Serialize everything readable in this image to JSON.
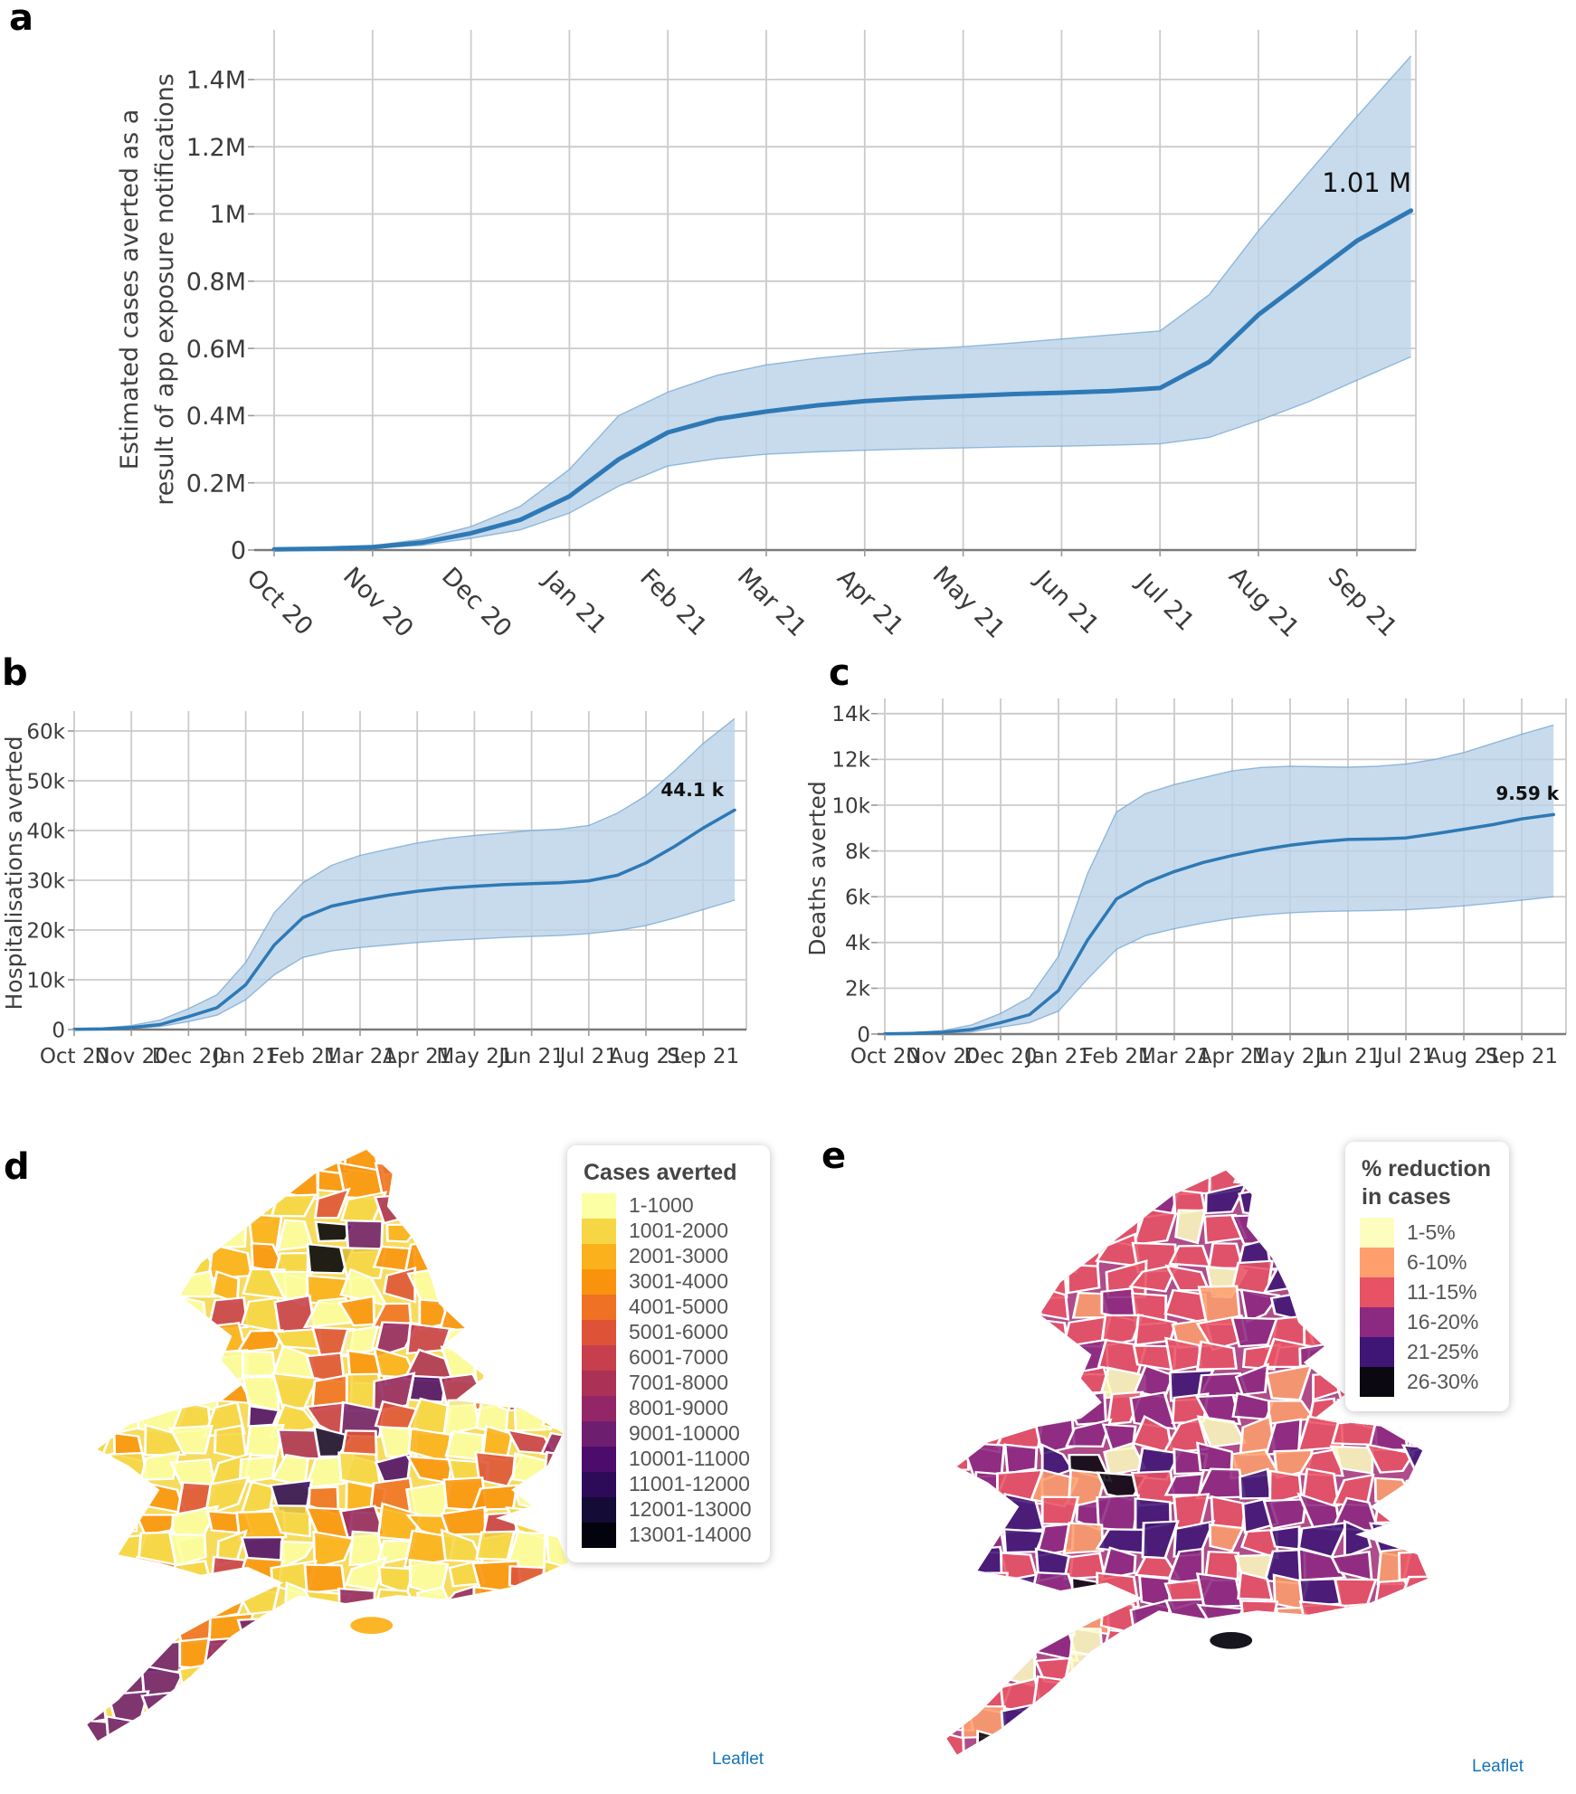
{
  "panels": {
    "a": {
      "letter": "a"
    },
    "b": {
      "letter": "b"
    },
    "c": {
      "letter": "c"
    },
    "d": {
      "letter": "d"
    },
    "e": {
      "letter": "e"
    }
  },
  "months": [
    "Oct 20",
    "Nov 20",
    "Dec 20",
    "Jan 21",
    "Feb 21",
    "Mar 21",
    "Apr 21",
    "May 21",
    "Jun 21",
    "Jul 21",
    "Aug 21",
    "Sep 21"
  ],
  "leaflet_label": "Leaflet",
  "colors": {
    "line": "#2E79B5",
    "band": "#B9D2E8",
    "band_edge": "#6FA3CF",
    "grid": "#CBCBCB",
    "axis": "#7A7A7A",
    "text": "#3B3B3B",
    "annotation": "#111111",
    "leaflet": "#1474B8"
  },
  "chart_data": [
    {
      "id": "a",
      "type": "line",
      "ylabel": "Estimated cases averted as a result of app exposure notifications",
      "ylabel_lines": [
        "Estimated cases averted as a",
        "result of app exposure notifications"
      ],
      "unit": "M",
      "end_label": "1.01 M",
      "end_value_M": 1.01,
      "ylim": [
        0,
        1.55
      ],
      "legend_position": "none",
      "grid": true,
      "yticks": {
        "values": [
          0,
          0.2,
          0.4,
          0.6,
          0.8,
          1.0,
          1.2,
          1.4
        ],
        "labels": [
          "0",
          "0.2M",
          "0.4M",
          "0.6M",
          "0.8M",
          "1M",
          "1.2M",
          "1.4M"
        ]
      },
      "x_tick_labels": [
        "Oct 20",
        "Nov 20",
        "Dec 20",
        "Jan 21",
        "Feb 21",
        "Mar 21",
        "Apr 21",
        "May 21",
        "Jun 21",
        "Jul 21",
        "Aug 21",
        "Sep 21"
      ],
      "series": {
        "x": [
          0,
          0.5,
          1,
          1.5,
          2,
          2.5,
          3,
          3.5,
          4,
          4.5,
          5,
          5.5,
          6,
          6.5,
          7,
          7.5,
          8,
          8.5,
          9,
          9.5,
          10,
          10.5,
          11,
          11.55
        ],
        "mean": [
          0.002,
          0.004,
          0.009,
          0.022,
          0.05,
          0.09,
          0.16,
          0.27,
          0.35,
          0.39,
          0.412,
          0.43,
          0.443,
          0.452,
          0.458,
          0.464,
          0.468,
          0.473,
          0.482,
          0.56,
          0.7,
          0.81,
          0.92,
          1.01
        ],
        "upper": [
          0.003,
          0.006,
          0.013,
          0.032,
          0.07,
          0.13,
          0.24,
          0.4,
          0.47,
          0.52,
          0.551,
          0.57,
          0.585,
          0.596,
          0.605,
          0.616,
          0.628,
          0.64,
          0.652,
          0.76,
          0.95,
          1.12,
          1.29,
          1.47
        ],
        "lower": [
          0.001,
          0.002,
          0.005,
          0.014,
          0.035,
          0.06,
          0.11,
          0.19,
          0.25,
          0.272,
          0.285,
          0.292,
          0.297,
          0.301,
          0.304,
          0.307,
          0.309,
          0.312,
          0.316,
          0.335,
          0.385,
          0.44,
          0.505,
          0.575
        ]
      }
    },
    {
      "id": "b",
      "type": "line",
      "ylabel": "Hospitalisations averted",
      "ylabel_lines": [
        "Hospitalisations averted"
      ],
      "unit": "k",
      "end_label": "44.1 k",
      "end_value_k": 44.1,
      "ylim": [
        0,
        63.6
      ],
      "grid": true,
      "yticks": {
        "values": [
          0,
          10,
          20,
          30,
          40,
          50,
          60
        ],
        "labels": [
          "0",
          "10k",
          "20k",
          "30k",
          "40k",
          "50k",
          "60k"
        ]
      },
      "x_tick_labels": [
        "Oct 20",
        "Nov 20",
        "Dec 20",
        "Jan 21",
        "Feb 21",
        "Mar 21",
        "Apr 21",
        "May 21",
        "Jun 21",
        "Jul 21",
        "Aug 21",
        "Sep 21"
      ],
      "series": {
        "x": [
          0,
          0.5,
          1,
          1.5,
          2,
          2.5,
          3,
          3.5,
          4,
          4.5,
          5,
          5.5,
          6,
          6.5,
          7,
          7.5,
          8,
          8.5,
          9,
          9.5,
          10,
          10.5,
          11,
          11.55
        ],
        "mean": [
          0.05,
          0.15,
          0.4,
          1.0,
          2.6,
          4.4,
          9,
          17,
          22.5,
          24.8,
          26,
          27,
          27.8,
          28.4,
          28.8,
          29.1,
          29.3,
          29.5,
          29.9,
          31,
          33.5,
          36.8,
          40.5,
          44.1
        ],
        "upper": [
          0.1,
          0.3,
          0.8,
          1.9,
          4.2,
          7,
          13.5,
          23.5,
          29.5,
          33,
          35,
          36.3,
          37.5,
          38.4,
          39,
          39.5,
          40,
          40.3,
          41,
          43.5,
          47,
          52,
          57.5,
          62.5
        ],
        "lower": [
          0.02,
          0.08,
          0.2,
          0.6,
          1.6,
          2.9,
          6,
          11,
          14.5,
          15.8,
          16.5,
          17,
          17.5,
          17.9,
          18.2,
          18.5,
          18.7,
          18.9,
          19.3,
          19.9,
          20.9,
          22.4,
          24.1,
          26
        ]
      }
    },
    {
      "id": "c",
      "type": "line",
      "ylabel": "Deaths averted",
      "ylabel_lines": [
        "Deaths averted"
      ],
      "unit": "k",
      "end_label": "9.59 k",
      "end_value_k": 9.59,
      "ylim": [
        0,
        14.6
      ],
      "grid": true,
      "yticks": {
        "values": [
          0,
          2,
          4,
          6,
          8,
          10,
          12,
          14
        ],
        "labels": [
          "0",
          "2k",
          "4k",
          "6k",
          "8k",
          "10k",
          "12k",
          "14k"
        ]
      },
      "x_tick_labels": [
        "Oct 20",
        "Nov 20",
        "Dec 20",
        "Jan 21",
        "Feb 21",
        "Mar 21",
        "Apr 21",
        "May 21",
        "Jun 21",
        "Jul 21",
        "Aug 21",
        "Sep 21"
      ],
      "series": {
        "x": [
          0,
          0.5,
          1,
          1.5,
          2,
          2.5,
          3,
          3.5,
          4,
          4.5,
          5,
          5.5,
          6,
          6.5,
          7,
          7.5,
          8,
          8.5,
          9,
          9.5,
          10,
          10.5,
          11,
          11.55
        ],
        "mean": [
          0.01,
          0.03,
          0.08,
          0.2,
          0.5,
          0.85,
          1.9,
          4.1,
          5.9,
          6.6,
          7.1,
          7.5,
          7.8,
          8.05,
          8.25,
          8.4,
          8.5,
          8.52,
          8.57,
          8.75,
          8.95,
          9.15,
          9.4,
          9.59
        ],
        "upper": [
          0.03,
          0.07,
          0.15,
          0.4,
          0.9,
          1.6,
          3.4,
          7.0,
          9.7,
          10.5,
          10.9,
          11.2,
          11.5,
          11.65,
          11.7,
          11.68,
          11.66,
          11.7,
          11.8,
          12.0,
          12.3,
          12.7,
          13.1,
          13.5
        ],
        "lower": [
          0.005,
          0.01,
          0.04,
          0.1,
          0.3,
          0.5,
          1.0,
          2.4,
          3.7,
          4.3,
          4.6,
          4.85,
          5.05,
          5.2,
          5.3,
          5.35,
          5.38,
          5.4,
          5.43,
          5.5,
          5.6,
          5.72,
          5.85,
          6.0
        ]
      }
    }
  ],
  "maps": {
    "d": {
      "legend_title": "Cases averted",
      "base": "#F6D645",
      "iow_color": "#FBB11B",
      "seed": 42,
      "items": [
        {
          "label": "1-1000",
          "color": "#FCFFA4"
        },
        {
          "label": "1001-2000",
          "color": "#F6D645"
        },
        {
          "label": "2001-3000",
          "color": "#FBB11B"
        },
        {
          "label": "3001-4000",
          "color": "#F9930D"
        },
        {
          "label": "4001-5000",
          "color": "#EF7123"
        },
        {
          "label": "5001-6000",
          "color": "#DE5238"
        },
        {
          "label": "6001-7000",
          "color": "#C73E4C"
        },
        {
          "label": "7001-8000",
          "color": "#AB3156"
        },
        {
          "label": "8001-9000",
          "color": "#932667"
        },
        {
          "label": "9001-10000",
          "color": "#6E1E6F"
        },
        {
          "label": "10001-11000",
          "color": "#4C0C6B"
        },
        {
          "label": "11001-12000",
          "color": "#2D0B59"
        },
        {
          "label": "12001-13000",
          "color": "#150B37"
        },
        {
          "label": "13001-14000",
          "color": "#03030D"
        }
      ],
      "weights": [
        0.27,
        0.21,
        0.14,
        0.11,
        0.08,
        0.06,
        0.045,
        0.035,
        0.02,
        0.012,
        0.007,
        0.004,
        0.004,
        0.002
      ],
      "wales_weights": [
        0.42,
        0.3,
        0.12,
        0.09,
        0.04,
        0.02,
        0.01,
        0,
        0,
        0,
        0,
        0,
        0,
        0
      ]
    },
    "e": {
      "legend_title_line1": "% reduction",
      "legend_title_line2": "in cases",
      "base": "#A43379",
      "iow_color": "#0B0811",
      "seed": 7,
      "items": [
        {
          "label": "1-5%",
          "color": "#FCFDBF"
        },
        {
          "label": "6-10%",
          "color": "#FE9F6D"
        },
        {
          "label": "11-15%",
          "color": "#E75265"
        },
        {
          "label": "16-20%",
          "color": "#8C2981"
        },
        {
          "label": "21-25%",
          "color": "#3F1676"
        },
        {
          "label": "26-30%",
          "color": "#0B0811"
        }
      ],
      "weights": [
        0.045,
        0.16,
        0.36,
        0.26,
        0.16,
        0.015
      ]
    }
  }
}
